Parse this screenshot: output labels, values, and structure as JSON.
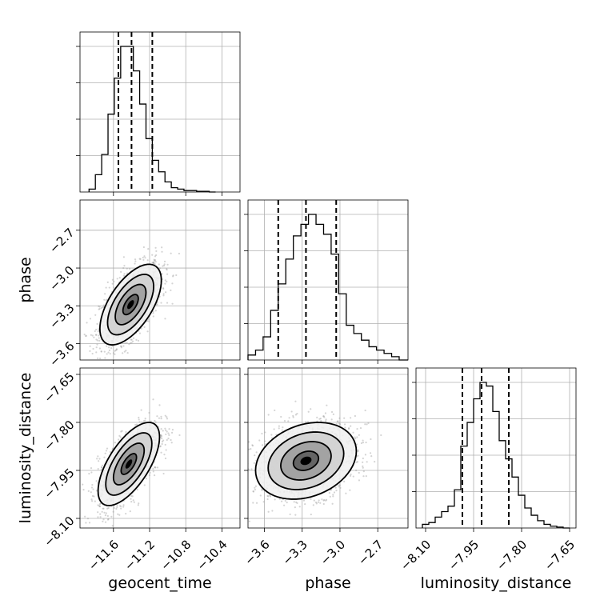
{
  "chart_data": {
    "type": "corner",
    "parameters": [
      "geocent_time",
      "phase",
      "luminosity_distance"
    ],
    "axes": {
      "geocent_time": {
        "label": "geocent_time",
        "range": [
          -11.97,
          -10.2
        ],
        "ticks": [
          -11.6,
          -11.2,
          -10.8,
          -10.4
        ],
        "tick_labels": [
          "−11.6",
          "−11.2",
          "−10.8",
          "−10.4"
        ],
        "quantiles": [
          -11.545,
          -11.4,
          -11.17
        ]
      },
      "phase": {
        "label": "phase",
        "range": [
          -3.73,
          -2.46
        ],
        "ticks": [
          -3.6,
          -3.3,
          -3.0,
          -2.7
        ],
        "tick_labels": [
          "−3.6",
          "−3.3",
          "−3.0",
          "−2.7"
        ],
        "quantiles": [
          -3.49,
          -3.27,
          -3.03
        ]
      },
      "luminosity_distance": {
        "label": "luminosity_distance",
        "range": [
          -8.13,
          -7.63
        ],
        "ticks": [
          -8.1,
          -7.95,
          -7.8,
          -7.65
        ],
        "tick_labels": [
          "−8.10",
          "−7.95",
          "−7.80",
          "−7.65"
        ],
        "quantiles": [
          -7.985,
          -7.925,
          -7.84
        ]
      }
    },
    "histograms": {
      "geocent_time": {
        "bin_edges": [
          -11.87,
          -11.8,
          -11.73,
          -11.66,
          -11.59,
          -11.52,
          -11.45,
          -11.38,
          -11.31,
          -11.24,
          -11.17,
          -11.1,
          -11.03,
          -10.96,
          -10.89,
          -10.82,
          -10.75,
          -10.68,
          -10.61,
          -10.54,
          -10.47
        ],
        "counts": [
          2,
          12,
          26,
          54,
          79,
          101,
          101,
          84,
          61,
          37,
          22,
          14,
          7,
          3,
          2,
          1,
          1,
          0.5,
          0.5,
          0
        ]
      },
      "phase": {
        "bin_edges": [
          -3.73,
          -3.67,
          -3.61,
          -3.55,
          -3.49,
          -3.43,
          -3.37,
          -3.31,
          -3.25,
          -3.19,
          -3.13,
          -3.07,
          -3.01,
          -2.95,
          -2.89,
          -2.83,
          -2.77,
          -2.71,
          -2.65,
          -2.59,
          -2.53,
          -2.46
        ],
        "counts": [
          3,
          6,
          14,
          30,
          46,
          61,
          75,
          82,
          88,
          82,
          76,
          64,
          40,
          21,
          16,
          12,
          8,
          6,
          4,
          2,
          0
        ]
      },
      "luminosity_distance": {
        "bin_edges": [
          -8.11,
          -8.09,
          -8.07,
          -8.05,
          -8.03,
          -8.01,
          -7.99,
          -7.97,
          -7.95,
          -7.93,
          -7.91,
          -7.89,
          -7.87,
          -7.85,
          -7.83,
          -7.81,
          -7.79,
          -7.77,
          -7.75,
          -7.73,
          -7.71,
          -7.69,
          -7.67,
          -7.65
        ],
        "counts": [
          2,
          3,
          6,
          9,
          12,
          21,
          45,
          58,
          71,
          80,
          78,
          64,
          48,
          38,
          28,
          18,
          11,
          7,
          4,
          2,
          1,
          0.5,
          0
        ]
      }
    },
    "pairs": [
      {
        "x": "geocent_time",
        "y": "phase",
        "center": [
          -11.41,
          -3.29
        ],
        "sigma": [
          0.17,
          0.16
        ],
        "rho": 0.6,
        "contour_levels_sigma": [
          0.5,
          1.0,
          1.5,
          2.0
        ],
        "scatter_extent_sigma": 3.0
      },
      {
        "x": "geocent_time",
        "y": "luminosity_distance",
        "center": [
          -11.43,
          -7.93
        ],
        "sigma": [
          0.17,
          0.065
        ],
        "rho": 0.65,
        "contour_levels_sigma": [
          0.5,
          1.0,
          1.5,
          2.0
        ],
        "scatter_extent_sigma": 3.0
      },
      {
        "x": "phase",
        "y": "luminosity_distance",
        "center": [
          -3.27,
          -7.92
        ],
        "sigma": [
          0.2,
          0.06
        ],
        "rho": 0.25,
        "contour_levels_sigma": [
          0.5,
          1.0,
          1.5,
          2.0
        ],
        "scatter_extent_sigma": 3.0
      }
    ],
    "colors": {
      "line": "#000000",
      "grid": "#b0b0b0",
      "scatter": "#a0a0a0"
    },
    "grid": true
  }
}
